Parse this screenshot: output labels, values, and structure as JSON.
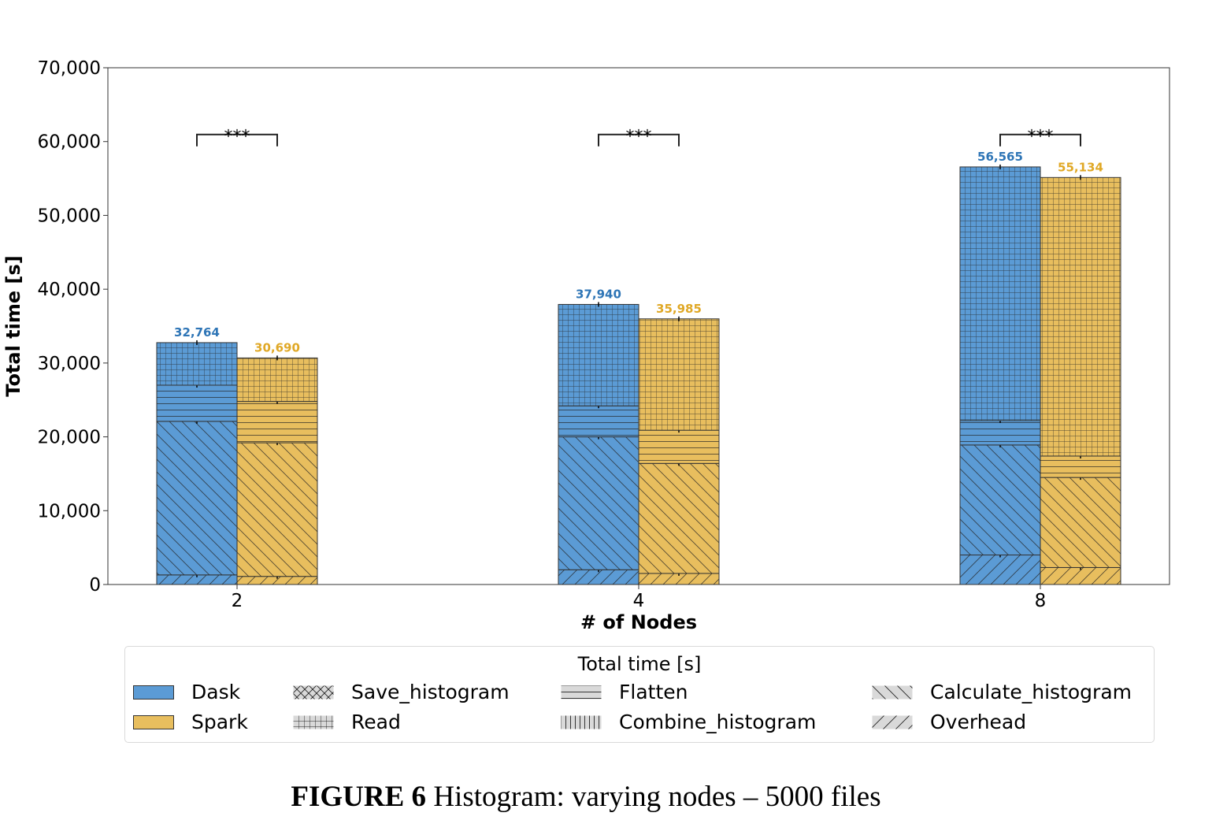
{
  "chart_data": {
    "type": "bar",
    "stacked": true,
    "ylabel": "Total time [s]",
    "xlabel": "# of Nodes",
    "categories": [
      "2",
      "4",
      "8"
    ],
    "ylim": [
      0,
      70000
    ],
    "yticks": [
      "0",
      "10,000",
      "20,000",
      "30,000",
      "40,000",
      "50,000",
      "60,000",
      "70,000"
    ],
    "grid": false,
    "series": [
      {
        "name": "Dask",
        "color": "#5b9bd5",
        "label_color": "#2e75b6",
        "totals": [
          32764,
          37940,
          56565
        ],
        "total_labels": [
          "32,764",
          "37,940",
          "56,565"
        ],
        "segments": {
          "Overhead": [
            1300,
            2000,
            4000
          ],
          "Calculate_histogram": [
            20800,
            18000,
            14900
          ],
          "Flatten": [
            4900,
            4200,
            3300
          ],
          "Read": [
            5764,
            13740,
            34365
          ]
        }
      },
      {
        "name": "Spark",
        "color": "#e8be5e",
        "label_color": "#e0a826",
        "totals": [
          30690,
          35985,
          55134
        ],
        "total_labels": [
          "30,690",
          "35,985",
          "55,134"
        ],
        "segments": {
          "Overhead": [
            1100,
            1500,
            2300
          ],
          "Calculate_histogram": [
            18100,
            14900,
            12200
          ],
          "Flatten": [
            5600,
            4500,
            2900
          ],
          "Read": [
            5890,
            15085,
            37734
          ]
        }
      }
    ],
    "significance": [
      "***",
      "***",
      "***"
    ],
    "significance_level": 60000,
    "legend": {
      "title": "Total time [s]",
      "placement": "bottom",
      "entries": [
        {
          "label": "Dask",
          "kind": "color",
          "color": "#5b9bd5"
        },
        {
          "label": "Spark",
          "kind": "color",
          "color": "#e8be5e"
        },
        {
          "label": "Save_histogram",
          "kind": "hatch",
          "hatch": "cross"
        },
        {
          "label": "Read",
          "kind": "hatch",
          "hatch": "grid"
        },
        {
          "label": "Flatten",
          "kind": "hatch",
          "hatch": "horizontal"
        },
        {
          "label": "Combine_histogram",
          "kind": "hatch",
          "hatch": "vertical"
        },
        {
          "label": "Calculate_histogram",
          "kind": "hatch",
          "hatch": "backslash"
        },
        {
          "label": "Overhead",
          "kind": "hatch",
          "hatch": "slash"
        }
      ]
    }
  },
  "caption": {
    "label": "FIGURE 6",
    "text": " Histogram: varying nodes – 5000 files"
  }
}
